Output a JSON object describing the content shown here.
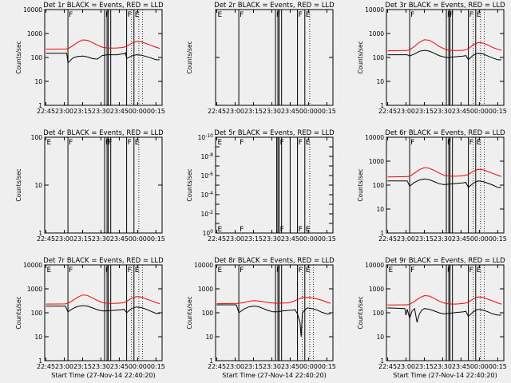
{
  "figure": {
    "background": "#efefef",
    "events_color": "#000000",
    "lld_color": "#ff0000",
    "xtick_labels": [
      "22:45",
      "23:00",
      "23:15",
      "23:30",
      "23:45",
      "00:00",
      "00:15"
    ],
    "xlabel": "Start Time (27-Nov-14 22:40:20)",
    "ylabel": "Counts/sec"
  },
  "chart_data": [
    {
      "type": "line",
      "title": "Det 1r BLACK = Events, RED = LLD",
      "show_xlabel": false,
      "yscale": "log",
      "ylim": [
        1,
        10000
      ],
      "ytick_labels": [
        "1",
        "10",
        "100",
        "1000",
        "10000"
      ],
      "x_minutes_range": [
        -1,
        95
      ],
      "solid_vlines": [
        18,
        48,
        50,
        51,
        53,
        66,
        72
      ],
      "dotted_vlines": [
        70,
        76,
        79
      ],
      "flags": [
        {
          "text": "F",
          "x": 18
        },
        {
          "text": "F",
          "x": 48
        },
        {
          "text": "F",
          "x": 66
        },
        {
          "text": "E",
          "x": 72
        }
      ],
      "series": [
        {
          "name": "Events",
          "color": "#000000",
          "x": [
            0,
            16,
            17,
            18,
            22,
            26,
            30,
            34,
            38,
            42,
            46,
            48,
            50,
            54,
            58,
            62,
            64,
            65,
            66,
            70,
            74,
            78,
            82,
            86,
            90,
            93
          ],
          "y": [
            150,
            150,
            150,
            60,
            95,
            110,
            115,
            105,
            90,
            85,
            120,
            125,
            130,
            130,
            130,
            140,
            140,
            160,
            90,
            115,
            130,
            125,
            110,
            95,
            80,
            80
          ]
        },
        {
          "name": "LLD",
          "color": "#ff0000",
          "x": [
            0,
            16,
            18,
            22,
            26,
            30,
            34,
            38,
            42,
            46,
            50,
            54,
            58,
            62,
            64,
            66,
            70,
            74,
            78,
            82,
            86,
            90,
            93
          ],
          "y": [
            220,
            225,
            230,
            310,
            430,
            540,
            520,
            420,
            330,
            270,
            250,
            245,
            250,
            260,
            270,
            290,
            390,
            470,
            450,
            380,
            320,
            270,
            240
          ]
        }
      ]
    },
    {
      "type": "line",
      "title": "Det 2r BLACK = Events, RED = LLD",
      "show_xlabel": false,
      "yscale": "log",
      "ylim": [
        1,
        100
      ],
      "ytick_labels": [],
      "x_minutes_range": [
        -1,
        95
      ],
      "solid_vlines": [
        18,
        48,
        50,
        51,
        53,
        66,
        72
      ],
      "dotted_vlines": [
        76
      ],
      "flags": [
        {
          "text": "E",
          "x": 0
        },
        {
          "text": "F",
          "x": 18
        },
        {
          "text": "F",
          "x": 48
        },
        {
          "text": "F",
          "x": 66
        },
        {
          "text": "E",
          "x": 72
        }
      ],
      "series": []
    },
    {
      "type": "line",
      "title": "Det 3r BLACK = Events, RED = LLD",
      "show_xlabel": false,
      "yscale": "log",
      "ylim": [
        1,
        10000
      ],
      "ytick_labels": [
        "1",
        "10",
        "100",
        "1000",
        "10000"
      ],
      "x_minutes_range": [
        -1,
        95
      ],
      "solid_vlines": [
        18,
        48,
        50,
        51,
        53,
        66,
        72
      ],
      "dotted_vlines": [
        70,
        76,
        79
      ],
      "flags": [
        {
          "text": "F",
          "x": 18
        },
        {
          "text": "F",
          "x": 48
        },
        {
          "text": "F",
          "x": 50
        },
        {
          "text": "F",
          "x": 66
        },
        {
          "text": "E",
          "x": 72
        }
      ],
      "series": [
        {
          "name": "Events",
          "color": "#000000",
          "x": [
            0,
            16,
            18,
            22,
            26,
            30,
            34,
            38,
            42,
            46,
            48,
            50,
            54,
            58,
            62,
            64,
            66,
            70,
            74,
            78,
            82,
            86,
            90,
            93
          ],
          "y": [
            130,
            130,
            115,
            140,
            180,
            200,
            185,
            150,
            120,
            105,
            100,
            100,
            105,
            110,
            115,
            120,
            80,
            125,
            150,
            140,
            115,
            95,
            80,
            80
          ]
        },
        {
          "name": "LLD",
          "color": "#ff0000",
          "x": [
            0,
            16,
            18,
            22,
            26,
            30,
            34,
            38,
            42,
            46,
            48,
            50,
            54,
            58,
            62,
            64,
            66,
            70,
            74,
            78,
            82,
            86,
            90,
            93
          ],
          "y": [
            190,
            195,
            210,
            290,
            430,
            550,
            520,
            400,
            290,
            230,
            210,
            200,
            195,
            195,
            200,
            210,
            230,
            340,
            420,
            400,
            330,
            260,
            220,
            200
          ]
        }
      ]
    },
    {
      "type": "line",
      "title": "Det 4r BLACK = Events, RED = LLD",
      "show_xlabel": false,
      "yscale": "log",
      "ylim": [
        1,
        100
      ],
      "ytick_labels": [
        "1",
        "10",
        "100"
      ],
      "x_minutes_range": [
        -1,
        95
      ],
      "solid_vlines": [
        18,
        48,
        50,
        51,
        53,
        66,
        72
      ],
      "dotted_vlines": [
        76
      ],
      "flags": [
        {
          "text": "E",
          "x": 0
        },
        {
          "text": "F",
          "x": 18
        },
        {
          "text": "F",
          "x": 48
        },
        {
          "text": "F",
          "x": 50
        },
        {
          "text": "F",
          "x": 66
        },
        {
          "text": "E",
          "x": 72
        }
      ],
      "series": []
    },
    {
      "type": "line",
      "title": "Det 5r BLACK = Events, RED = LLD",
      "show_xlabel": false,
      "yscale": "log",
      "ylim": [
        1,
        1e-10
      ],
      "ytick_labels": [
        "10^0",
        "10^-2",
        "10^-4",
        "10^-6",
        "10^-8",
        "10^-10"
      ],
      "x_minutes_range": [
        -1,
        95
      ],
      "solid_vlines": [
        49,
        50,
        51,
        53,
        60,
        66,
        72
      ],
      "dotted_vlines": [
        76
      ],
      "flags": [
        {
          "text": "E",
          "x": 0
        },
        {
          "text": "F",
          "x": 18
        },
        {
          "text": "F",
          "x": 51
        },
        {
          "text": "F",
          "x": 66
        },
        {
          "text": "E",
          "x": 72
        }
      ],
      "series": []
    },
    {
      "type": "line",
      "title": "Det 6r BLACK = Events, RED = LLD",
      "show_xlabel": false,
      "yscale": "log",
      "ylim": [
        1,
        10000
      ],
      "ytick_labels": [
        "1",
        "10",
        "100",
        "1000",
        "10000"
      ],
      "x_minutes_range": [
        -1,
        95
      ],
      "solid_vlines": [
        18,
        48,
        50,
        51,
        53,
        66,
        72
      ],
      "dotted_vlines": [
        70,
        76,
        79
      ],
      "flags": [
        {
          "text": "F",
          "x": 18
        },
        {
          "text": "F",
          "x": 48
        },
        {
          "text": "F",
          "x": 66
        },
        {
          "text": "E",
          "x": 72
        }
      ],
      "series": [
        {
          "name": "Events",
          "color": "#000000",
          "x": [
            0,
            16,
            18,
            22,
            26,
            30,
            34,
            38,
            42,
            46,
            50,
            54,
            58,
            62,
            64,
            66,
            70,
            74,
            78,
            82,
            86,
            90,
            93
          ],
          "y": [
            150,
            150,
            90,
            130,
            165,
            180,
            170,
            140,
            115,
            105,
            110,
            115,
            120,
            125,
            130,
            80,
            120,
            150,
            140,
            120,
            100,
            80,
            80
          ]
        },
        {
          "name": "LLD",
          "color": "#ff0000",
          "x": [
            0,
            16,
            18,
            22,
            26,
            30,
            34,
            38,
            42,
            46,
            50,
            54,
            58,
            62,
            64,
            66,
            70,
            74,
            78,
            82,
            86,
            90,
            93
          ],
          "y": [
            220,
            225,
            235,
            320,
            440,
            540,
            510,
            410,
            320,
            260,
            240,
            235,
            240,
            250,
            260,
            280,
            380,
            460,
            440,
            370,
            310,
            260,
            230
          ]
        }
      ]
    },
    {
      "type": "line",
      "title": "Det 7r BLACK = Events, RED = LLD",
      "show_xlabel": true,
      "yscale": "log",
      "ylim": [
        1,
        10000
      ],
      "ytick_labels": [
        "1",
        "10",
        "100",
        "1000",
        "10000"
      ],
      "x_minutes_range": [
        -1,
        95
      ],
      "solid_vlines": [
        18,
        48,
        50,
        51,
        53,
        66,
        72
      ],
      "dotted_vlines": [
        70,
        76,
        79
      ],
      "flags": [
        {
          "text": "E",
          "x": 0
        },
        {
          "text": "F",
          "x": 18
        },
        {
          "text": "F",
          "x": 48
        },
        {
          "text": "F",
          "x": 66
        },
        {
          "text": "E",
          "x": 72
        }
      ],
      "series": [
        {
          "name": "Events",
          "color": "#000000",
          "x": [
            0,
            16,
            18,
            22,
            26,
            30,
            34,
            38,
            42,
            46,
            50,
            54,
            58,
            62,
            64,
            66,
            70,
            74,
            78,
            82,
            86,
            90,
            93
          ],
          "y": [
            190,
            190,
            110,
            150,
            185,
            200,
            190,
            160,
            135,
            120,
            120,
            125,
            130,
            135,
            140,
            100,
            150,
            175,
            165,
            140,
            115,
            95,
            95
          ]
        },
        {
          "name": "LLD",
          "color": "#ff0000",
          "x": [
            0,
            16,
            18,
            22,
            26,
            30,
            34,
            38,
            42,
            46,
            50,
            54,
            58,
            62,
            64,
            66,
            70,
            74,
            78,
            82,
            86,
            90,
            93
          ],
          "y": [
            230,
            235,
            245,
            330,
            450,
            560,
            530,
            420,
            330,
            270,
            250,
            245,
            250,
            260,
            270,
            300,
            400,
            470,
            450,
            380,
            320,
            270,
            240
          ]
        }
      ]
    },
    {
      "type": "line",
      "title": "Det 8r BLACK = Events, RED = LLD",
      "show_xlabel": true,
      "yscale": "log",
      "ylim": [
        1,
        10000
      ],
      "ytick_labels": [
        "1",
        "10",
        "100",
        "1000",
        "10000"
      ],
      "x_minutes_range": [
        -1,
        95
      ],
      "solid_vlines": [
        18,
        48,
        50,
        51,
        53,
        66,
        72
      ],
      "dotted_vlines": [
        70,
        76,
        79
      ],
      "flags": [
        {
          "text": "E",
          "x": 0
        },
        {
          "text": "F",
          "x": 18
        },
        {
          "text": "F",
          "x": 48
        },
        {
          "text": "F",
          "x": 66
        },
        {
          "text": "E",
          "x": 72
        }
      ],
      "series": [
        {
          "name": "Events",
          "color": "#000000",
          "x": [
            0,
            16,
            18,
            22,
            26,
            30,
            34,
            38,
            42,
            46,
            50,
            54,
            58,
            62,
            64,
            66,
            68,
            69,
            70,
            72,
            74,
            78,
            82,
            86,
            90,
            93
          ],
          "y": [
            215,
            215,
            100,
            140,
            175,
            190,
            180,
            150,
            125,
            110,
            110,
            120,
            125,
            130,
            135,
            90,
            40,
            10,
            100,
            130,
            160,
            150,
            130,
            105,
            90,
            90
          ]
        },
        {
          "name": "LLD",
          "color": "#ff0000",
          "x": [
            0,
            16,
            18,
            22,
            26,
            30,
            34,
            38,
            42,
            46,
            50,
            54,
            58,
            62,
            64,
            66,
            70,
            74,
            78,
            82,
            86,
            90,
            93
          ],
          "y": [
            240,
            245,
            250,
            270,
            300,
            320,
            310,
            290,
            270,
            255,
            250,
            255,
            260,
            290,
            320,
            360,
            430,
            440,
            420,
            380,
            330,
            280,
            250
          ]
        }
      ]
    },
    {
      "type": "line",
      "title": "Det 9r BLACK = Events, RED = LLD",
      "show_xlabel": true,
      "yscale": "log",
      "ylim": [
        1,
        10000
      ],
      "ytick_labels": [
        "1",
        "10",
        "100",
        "1000",
        "10000"
      ],
      "x_minutes_range": [
        -1,
        95
      ],
      "solid_vlines": [
        18,
        48,
        50,
        51,
        53,
        66,
        72
      ],
      "dotted_vlines": [
        70,
        76,
        79
      ],
      "flags": [
        {
          "text": "E",
          "x": 0
        },
        {
          "text": "F",
          "x": 18
        },
        {
          "text": "F",
          "x": 48
        },
        {
          "text": "F",
          "x": 66
        },
        {
          "text": "E",
          "x": 72
        }
      ],
      "series": [
        {
          "name": "Events",
          "color": "#000000",
          "x": [
            0,
            14,
            15,
            16,
            18,
            20,
            22,
            24,
            26,
            28,
            30,
            34,
            38,
            42,
            46,
            50,
            54,
            58,
            62,
            64,
            66,
            70,
            74,
            78,
            82,
            86,
            90,
            93
          ],
          "y": [
            160,
            150,
            80,
            140,
            60,
            120,
            150,
            40,
            90,
            130,
            150,
            140,
            120,
            100,
            90,
            95,
            100,
            105,
            110,
            115,
            70,
            110,
            140,
            130,
            110,
            90,
            80,
            80
          ]
        },
        {
          "name": "LLD",
          "color": "#ff0000",
          "x": [
            0,
            16,
            18,
            22,
            26,
            30,
            34,
            38,
            42,
            46,
            50,
            54,
            58,
            62,
            64,
            66,
            70,
            74,
            78,
            82,
            86,
            90,
            93
          ],
          "y": [
            210,
            215,
            225,
            300,
            420,
            520,
            500,
            400,
            310,
            255,
            235,
            230,
            235,
            245,
            255,
            280,
            380,
            460,
            440,
            370,
            310,
            260,
            230
          ]
        }
      ]
    }
  ]
}
